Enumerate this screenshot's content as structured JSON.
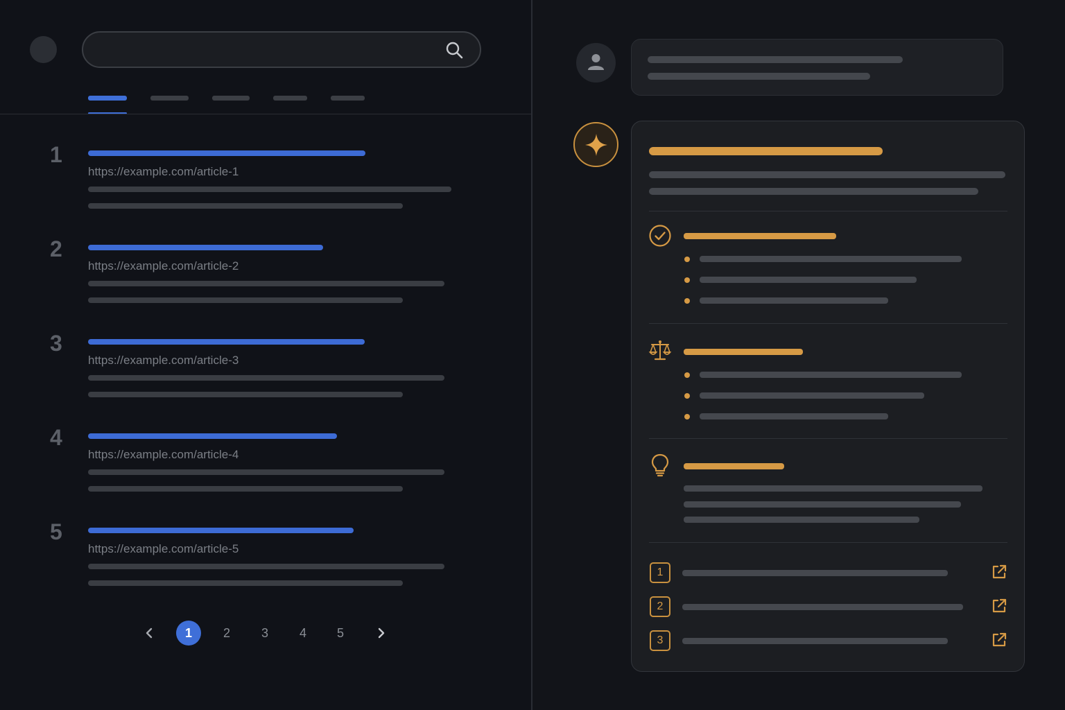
{
  "search": {
    "query": "",
    "placeholder": ""
  },
  "results": [
    {
      "rank": "1",
      "url": "https://example.com/article-1"
    },
    {
      "rank": "2",
      "url": "https://example.com/article-2"
    },
    {
      "rank": "3",
      "url": "https://example.com/article-3"
    },
    {
      "rank": "4",
      "url": "https://example.com/article-4"
    },
    {
      "rank": "5",
      "url": "https://example.com/article-5"
    }
  ],
  "pagination": {
    "pages": [
      "1",
      "2",
      "3",
      "4",
      "5"
    ],
    "current": "1"
  },
  "answer": {
    "sources": [
      "1",
      "2",
      "3"
    ]
  },
  "colors": {
    "accent_blue": "#3f6fd8",
    "accent_gold": "#d69a45",
    "background": "#101218"
  },
  "icons": [
    "search-icon",
    "user-icon",
    "sparkle-icon",
    "check-circle-icon",
    "scales-icon",
    "lightbulb-icon",
    "external-link-icon",
    "chevron-left-icon",
    "chevron-right-icon"
  ]
}
